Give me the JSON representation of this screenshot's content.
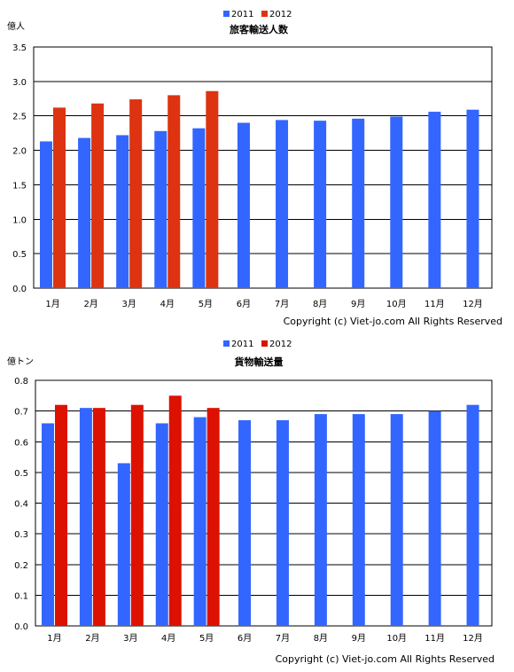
{
  "charts": [
    {
      "id": "chart1",
      "legend_labels": [
        "2011",
        "2012"
      ],
      "copyright": "Copyright (c) Viet-jo.com All Rights Reserved"
    },
    {
      "id": "chart2",
      "legend_labels": [
        "2011",
        "2012"
      ],
      "copyright": "Copyright (c) Viet-jo.com All Rights Reserved"
    }
  ],
  "colors": {
    "s2011": "#3366ff",
    "s2012": "#dd3311",
    "s2012_b": "#dd1100",
    "grid": "#000000"
  },
  "chart_data": [
    {
      "type": "bar",
      "title": "旅客輸送人数",
      "ylabel": "億人",
      "categories": [
        "1月",
        "2月",
        "3月",
        "4月",
        "5月",
        "6月",
        "7月",
        "8月",
        "9月",
        "10月",
        "11月",
        "12月"
      ],
      "ylim": [
        0,
        3.5
      ],
      "yticks": [
        "0.0",
        "0.5",
        "1.0",
        "1.5",
        "2.0",
        "2.5",
        "3.0",
        "3.5"
      ],
      "grid": true,
      "legend_position": "top-center",
      "series": [
        {
          "name": "2011",
          "values": [
            2.13,
            2.18,
            2.22,
            2.28,
            2.32,
            2.4,
            2.44,
            2.43,
            2.46,
            2.49,
            2.56,
            2.59
          ]
        },
        {
          "name": "2012",
          "values": [
            2.62,
            2.68,
            2.74,
            2.8,
            2.86,
            null,
            null,
            null,
            null,
            null,
            null,
            null
          ]
        }
      ]
    },
    {
      "type": "bar",
      "title": "貨物輸送量",
      "ylabel": "億トン",
      "categories": [
        "1月",
        "2月",
        "3月",
        "4月",
        "5月",
        "6月",
        "7月",
        "8月",
        "9月",
        "10月",
        "11月",
        "12月"
      ],
      "ylim": [
        0,
        0.8
      ],
      "yticks": [
        "0.0",
        "0.1",
        "0.2",
        "0.3",
        "0.4",
        "0.5",
        "0.6",
        "0.7",
        "0.8"
      ],
      "grid": true,
      "legend_position": "top-center",
      "series": [
        {
          "name": "2011",
          "values": [
            0.66,
            0.71,
            0.53,
            0.66,
            0.68,
            0.67,
            0.67,
            0.69,
            0.69,
            0.69,
            0.7,
            0.72
          ]
        },
        {
          "name": "2012",
          "values": [
            0.72,
            0.71,
            0.72,
            0.75,
            0.71,
            null,
            null,
            null,
            null,
            null,
            null,
            null
          ]
        }
      ]
    }
  ]
}
